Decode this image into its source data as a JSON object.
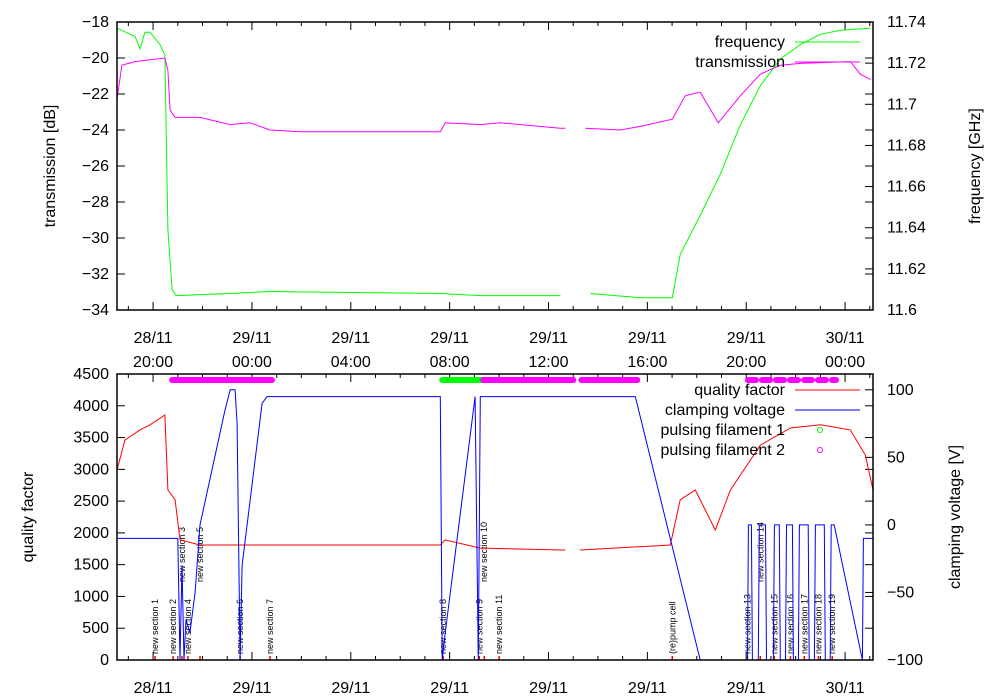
{
  "chart_data": [
    {
      "type": "line",
      "panel": "top",
      "xunit": "hours since 28/11 00:00",
      "xlim": [
        18.54,
        49.13
      ],
      "ylabel": "transmission [dB]",
      "ylim": [
        -34,
        -18
      ],
      "yticks": [
        -34,
        -32,
        -30,
        -28,
        -26,
        -24,
        -22,
        -20,
        -18
      ],
      "y2label": "frequency [GHz]",
      "y2lim": [
        11.6,
        11.74
      ],
      "y2ticks": [
        "11.6",
        "11.62",
        "11.64",
        "11.66",
        "11.68",
        "11.7",
        "11.72",
        "11.74"
      ],
      "legend_position": "top-right",
      "series": [
        {
          "name": "frequency",
          "axis": "y2",
          "color": "#00ff00",
          "x": [
            18.54,
            19.27,
            19.47,
            19.67,
            19.88,
            20.28,
            20.48,
            20.6,
            20.77,
            20.93,
            23.12,
            24.73,
            31.62,
            33.24,
            36.48,
            null,
            37.69,
            39.71,
            41.01,
            41.33,
            42.14,
            42.95,
            43.76,
            44.57,
            45.38,
            46.19,
            47.0,
            47.81,
            49.03
          ],
          "y": [
            11.737,
            11.733,
            11.727,
            11.735,
            11.735,
            11.729,
            11.724,
            11.639,
            11.61,
            11.607,
            11.608,
            11.609,
            11.608,
            11.607,
            11.607,
            null,
            11.608,
            11.606,
            11.606,
            11.627,
            11.646,
            11.666,
            11.69,
            11.709,
            11.722,
            11.729,
            11.734,
            11.736,
            11.737
          ]
        },
        {
          "name": "transmission",
          "axis": "y",
          "color": "#ff00ff",
          "x": [
            18.54,
            18.74,
            19.27,
            19.88,
            20.48,
            20.6,
            20.69,
            20.89,
            21.9,
            23.12,
            23.92,
            24.73,
            25.95,
            31.62,
            31.82,
            33.24,
            34.05,
            36.48,
            36.68,
            null,
            37.49,
            38.9,
            39.71,
            41.01,
            41.53,
            42.14,
            42.87,
            43.76,
            44.57,
            45.38,
            46.19,
            48.21,
            48.62,
            49.03
          ],
          "y": [
            -22.3,
            -20.4,
            -20.2,
            -20.1,
            -20.0,
            -20.7,
            -22.9,
            -23.3,
            -23.3,
            -23.7,
            -23.6,
            -24.0,
            -24.1,
            -24.1,
            -23.6,
            -23.7,
            -23.6,
            -23.9,
            -23.9,
            null,
            -23.9,
            -24.0,
            -23.8,
            -23.4,
            -22.1,
            -21.9,
            -23.6,
            -22.1,
            -20.9,
            -20.4,
            -20.3,
            -20.2,
            -20.9,
            -21.2
          ]
        }
      ]
    },
    {
      "type": "line",
      "panel": "bottom",
      "xunit": "hours since 28/11 00:00",
      "xlim": [
        18.54,
        49.13
      ],
      "ylabel": "quality factor",
      "ylim": [
        0,
        4500
      ],
      "yticks": [
        0,
        500,
        1000,
        1500,
        2000,
        2500,
        3000,
        3500,
        4000,
        4500
      ],
      "y2label": "clamping voltage [V]",
      "y2lim": [
        -100,
        111.7
      ],
      "y2ticks": [
        -100,
        -50,
        0,
        50,
        100
      ],
      "legend_position": "top-right",
      "series": [
        {
          "name": "quality factor",
          "axis": "y",
          "color": "#ff0000",
          "x": [
            18.54,
            18.86,
            19.47,
            19.88,
            20.48,
            20.6,
            20.89,
            21.09,
            21.9,
            24.73,
            31.62,
            31.82,
            33.24,
            36.48,
            36.68,
            null,
            37.28,
            40.93,
            41.33,
            41.94,
            42.75,
            43.36,
            44.57,
            45.79,
            47.0,
            48.21,
            48.82,
            49.13
          ],
          "y": [
            2990,
            3460,
            3620,
            3700,
            3855,
            2675,
            2520,
            1890,
            1810,
            1810,
            1810,
            1890,
            1760,
            1730,
            1730,
            null,
            1730,
            1810,
            2520,
            2675,
            2045,
            2675,
            3380,
            3650,
            3700,
            3620,
            3225,
            2675
          ]
        },
        {
          "name": "clamping voltage",
          "axis": "y2",
          "color": "#0000ff",
          "x": [
            18.54,
            21.0,
            21.09,
            21.17,
            21.25,
            21.33,
            21.49,
            21.7,
            21.9,
            22.91,
            23.12,
            23.32,
            23.4,
            23.52,
            23.6,
            24.41,
            24.61,
            31.62,
            31.7,
            31.82,
            33.03,
            33.16,
            33.24,
            34.05,
            39.51,
            42.14,
            44.05,
            44.09,
            44.21,
            44.25,
            44.49,
            44.53,
            44.78,
            44.82,
            45.1,
            45.14,
            45.34,
            45.38,
            45.59,
            45.63,
            45.87,
            45.91,
            46.11,
            46.15,
            46.51,
            46.55,
            46.76,
            46.8,
            47.16,
            47.2,
            47.4,
            47.44,
            47.56,
            48.7,
            48.74,
            49.13
          ],
          "y": [
            -10,
            -10,
            -100,
            -30,
            -100,
            -70,
            -80,
            -50,
            0,
            85,
            100,
            100,
            75,
            -100,
            -30,
            90,
            95,
            95,
            -100,
            -80,
            95,
            -100,
            95,
            95,
            95,
            -100,
            -100,
            0,
            0,
            -100,
            -100,
            0,
            0,
            -100,
            -100,
            0,
            0,
            -100,
            -100,
            0,
            0,
            -100,
            -100,
            0,
            0,
            -100,
            -100,
            0,
            0,
            -100,
            -100,
            0,
            0,
            -100,
            -10,
            -10
          ]
        }
      ],
      "intervals": [
        {
          "name": "pulsing filament 1",
          "color": "#00ff00",
          "ranges": [
            [
              31.7,
              33.36
            ]
          ]
        },
        {
          "name": "pulsing filament 2",
          "color": "#ff00ff",
          "ranges": [
            [
              20.77,
              24.81
            ],
            [
              33.36,
              37.0
            ],
            [
              37.33,
              39.59
            ]
          ]
        }
      ],
      "annotations": [
        {
          "x": 20.08,
          "text": "new section 1"
        },
        {
          "x": 20.81,
          "text": "new section 2"
        },
        {
          "x": 21.17,
          "text": "new section 3"
        },
        {
          "x": 21.41,
          "text": "new section 4"
        },
        {
          "x": 21.9,
          "text": "new section 5"
        },
        {
          "x": 23.52,
          "text": "new section 6"
        },
        {
          "x": 24.73,
          "text": "new section 7"
        },
        {
          "x": 31.74,
          "text": "new section 8"
        },
        {
          "x": 33.2,
          "text": "new section 9"
        },
        {
          "x": 33.4,
          "text": "new section 10"
        },
        {
          "x": 34.0,
          "text": "new section 11"
        },
        {
          "x": 41.01,
          "text": "(re)pump cell"
        },
        {
          "x": 44.05,
          "text": "new section 13"
        },
        {
          "x": 44.57,
          "text": "new section 14"
        },
        {
          "x": 45.14,
          "text": "new section 15"
        },
        {
          "x": 45.79,
          "text": "new section 16"
        },
        {
          "x": 46.35,
          "text": "new section 17"
        },
        {
          "x": 46.92,
          "text": "new section 18"
        },
        {
          "x": 47.48,
          "text": "new section 19"
        }
      ]
    }
  ],
  "x_ticks": [
    {
      "x": 20,
      "date": "28/11",
      "time": "20:00"
    },
    {
      "x": 24,
      "date": "29/11",
      "time": "00:00"
    },
    {
      "x": 28,
      "date": "29/11",
      "time": "04:00"
    },
    {
      "x": 32,
      "date": "29/11",
      "time": "08:00"
    },
    {
      "x": 36,
      "date": "29/11",
      "time": "12:00"
    },
    {
      "x": 40,
      "date": "29/11",
      "time": "16:00"
    },
    {
      "x": 44,
      "date": "29/11",
      "time": "20:00"
    },
    {
      "x": 48,
      "date": "30/11",
      "time": "00:00"
    }
  ]
}
